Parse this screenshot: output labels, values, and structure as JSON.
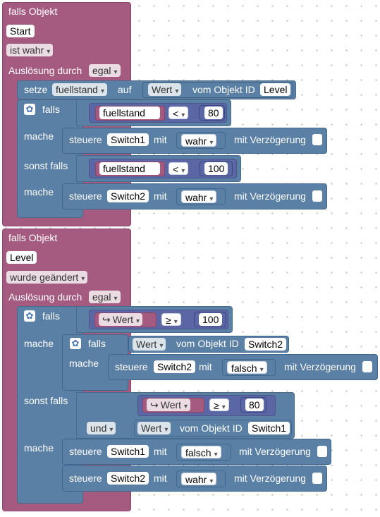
{
  "block1": {
    "header": "falls Objekt",
    "object": "Start",
    "condition": "ist wahr",
    "trigger_label": "Auslösung durch",
    "trigger_value": "egal",
    "set": {
      "label": "setze",
      "variable": "fuellstand",
      "on": "auf",
      "prop": "Wert",
      "from": "vom Objekt ID",
      "object": "Level"
    },
    "if": {
      "falls": "falls",
      "mache": "mache",
      "sonst_falls": "sonst falls"
    },
    "cond1": {
      "variable": "fuellstand",
      "op": "<",
      "value": "80"
    },
    "action1": {
      "label": "steuere",
      "object": "Switch1",
      "with": "mit",
      "value": "wahr",
      "delay": "mit Verzögerung"
    },
    "cond2": {
      "variable": "fuellstand",
      "op": "<",
      "value": "100"
    },
    "action2": {
      "label": "steuere",
      "object": "Switch2",
      "with": "mit",
      "value": "wahr",
      "delay": "mit Verzögerung"
    }
  },
  "block2": {
    "header": "falls Objekt",
    "object": "Level",
    "condition": "wurde geändert",
    "trigger_label": "Auslösung durch",
    "trigger_value": "egal",
    "if": {
      "falls": "falls",
      "mache": "mache",
      "sonst_falls": "sonst falls"
    },
    "cond1": {
      "variable": "Wert",
      "op": "≥",
      "value": "100"
    },
    "inner_if": {
      "falls": "falls",
      "mache": "mache",
      "prop": "Wert",
      "from": "vom Objekt ID",
      "object": "Switch2"
    },
    "inner_action": {
      "label": "steuere",
      "object": "Switch2",
      "with": "mit",
      "value": "falsch",
      "delay": "mit Verzögerung"
    },
    "cond2": {
      "variable": "Wert",
      "op": "≥",
      "value": "80",
      "logic": "und",
      "prop": "Wert",
      "from": "vom Objekt ID",
      "object": "Switch1"
    },
    "action3": {
      "label": "steuere",
      "object": "Switch1",
      "with": "mit",
      "value": "falsch",
      "delay": "mit Verzögerung"
    },
    "action4": {
      "label": "steuere",
      "object": "Switch2",
      "with": "mit",
      "value": "wahr",
      "delay": "mit Verzögerung"
    }
  },
  "icons": {
    "gear": "gear-icon",
    "arrow": "return-arrow-icon"
  },
  "colors": {
    "event": "#a55b80",
    "command": "#5b80a5",
    "operator": "#5b67a5",
    "variable": "#a55b80"
  }
}
